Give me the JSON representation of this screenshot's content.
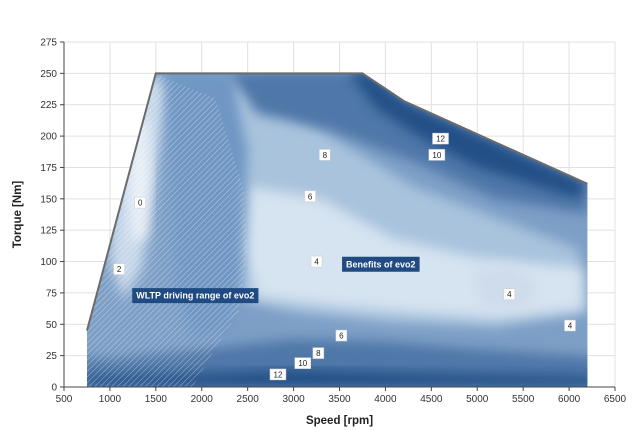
{
  "chart_data": {
    "type": "heatmap",
    "title": "",
    "xlabel": "Speed [rpm]",
    "ylabel": "Torque [Nm]",
    "xlim": [
      500,
      6500
    ],
    "ylim": [
      0,
      275
    ],
    "x_ticks": [
      500,
      1000,
      1500,
      2000,
      2500,
      3000,
      3500,
      4000,
      4500,
      5000,
      5500,
      6000,
      6500
    ],
    "y_ticks": [
      0,
      25,
      50,
      75,
      100,
      125,
      150,
      175,
      200,
      225,
      250,
      275
    ],
    "grid": true,
    "full_load_curve": [
      [
        750,
        45
      ],
      [
        1500,
        250
      ],
      [
        3750,
        250
      ],
      [
        4200,
        228
      ],
      [
        6200,
        162
      ],
      [
        6200,
        0
      ],
      [
        750,
        0
      ]
    ],
    "wltp_driving_range": [
      [
        750,
        0
      ],
      [
        750,
        42
      ],
      [
        1300,
        220
      ],
      [
        1550,
        248
      ],
      [
        2150,
        230
      ],
      [
        2450,
        160
      ],
      [
        2500,
        110
      ],
      [
        2400,
        60
      ],
      [
        2100,
        25
      ],
      [
        1900,
        0
      ]
    ],
    "contour_labels": [
      {
        "text": "0",
        "x": 1330,
        "y": 147
      },
      {
        "text": "2",
        "x": 1100,
        "y": 94
      },
      {
        "text": "4",
        "x": 3250,
        "y": 100
      },
      {
        "text": "4",
        "x": 5350,
        "y": 74
      },
      {
        "text": "4",
        "x": 6010,
        "y": 49
      },
      {
        "text": "6",
        "x": 3180,
        "y": 152
      },
      {
        "text": "6",
        "x": 3520,
        "y": 41
      },
      {
        "text": "8",
        "x": 3340,
        "y": 185
      },
      {
        "text": "8",
        "x": 3270,
        "y": 27
      },
      {
        "text": "10",
        "x": 4560,
        "y": 185
      },
      {
        "text": "10",
        "x": 3100,
        "y": 19
      },
      {
        "text": "12",
        "x": 4600,
        "y": 198
      },
      {
        "text": "12",
        "x": 2830,
        "y": 10
      }
    ],
    "annotations": [
      {
        "text": "Benefits of evo2",
        "x": 3950,
        "y": 98
      },
      {
        "text": "WLTP driving range of evo2",
        "x": 1930,
        "y": 73
      }
    ],
    "colors": {
      "lightest": "#d6e3f0",
      "light": "#a9c3dd",
      "mid": "#7d9fc6",
      "dark": "#4f77a8",
      "darkest": "#234f86",
      "callout_bg": "#1f4a82",
      "outline": "#6b6b6b"
    }
  }
}
